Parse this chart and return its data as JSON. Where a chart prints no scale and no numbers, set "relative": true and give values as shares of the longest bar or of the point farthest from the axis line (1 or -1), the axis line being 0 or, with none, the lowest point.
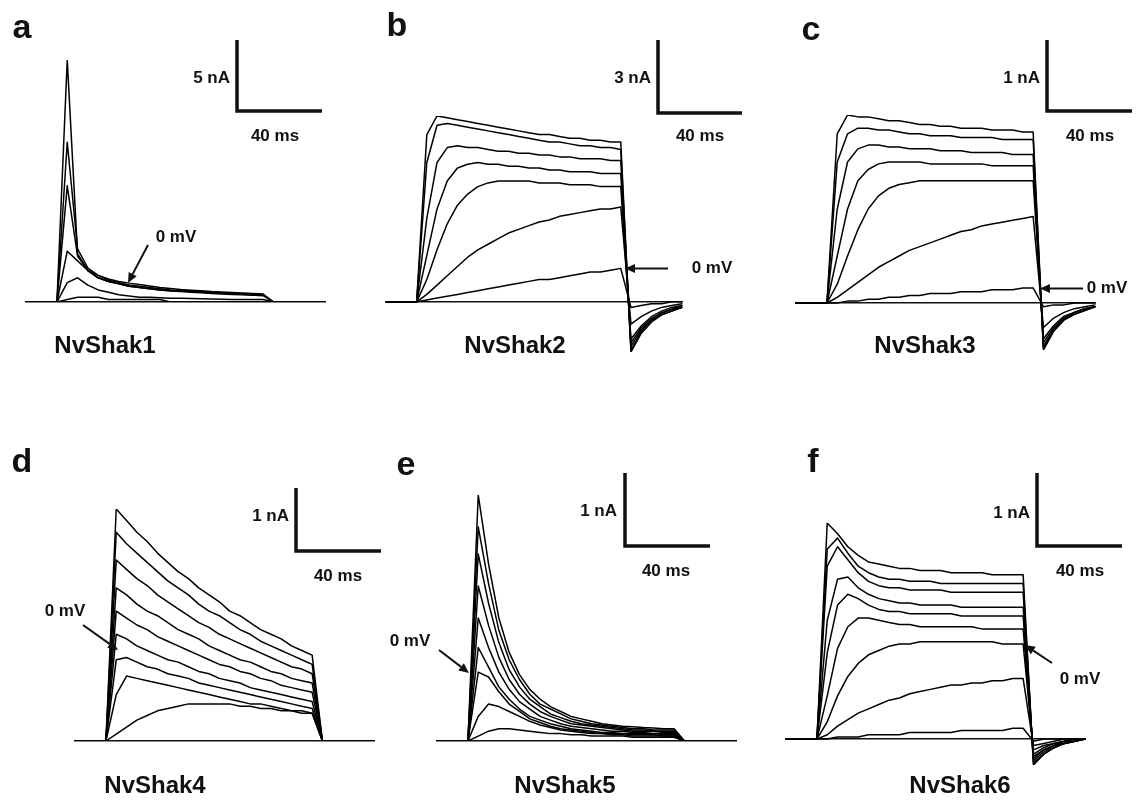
{
  "chart_data": [
    {
      "type": "line",
      "title": "a",
      "xlabel": "NvShak1",
      "relative": true,
      "annotations": [
        "5 nA",
        "40 ms",
        "0 mV"
      ],
      "categories": [
        null,
        null,
        null,
        null,
        null,
        null,
        null,
        null,
        null,
        null,
        null,
        null,
        null,
        null,
        null,
        null,
        null,
        null,
        null,
        null,
        null,
        null,
        null,
        null,
        null,
        null,
        null,
        null,
        null,
        null
      ],
      "series": [
        {
          "color": "#000000",
          "values": [
            0,
            0,
            0,
            0,
            1,
            0.2,
            0.13,
            0.1,
            0.085,
            0.075,
            0.065,
            0.06,
            0.055,
            0.05,
            0.048,
            0.045,
            0.043,
            0.04,
            0.038,
            0.036,
            0.034,
            0.032,
            0.03,
            0.03,
            0,
            0,
            0,
            0,
            0,
            0
          ]
        },
        {
          "color": "#000000",
          "values": [
            0,
            0,
            0,
            0,
            0.66,
            0.22,
            0.14,
            0.11,
            0.09,
            0.08,
            0.07,
            0.065,
            0.06,
            0.055,
            0.05,
            0.048,
            0.045,
            0.043,
            0.04,
            0.038,
            0.036,
            0.034,
            0.032,
            0.03,
            0,
            0,
            0,
            0,
            0,
            0
          ]
        },
        {
          "color": "#000000",
          "values": [
            0,
            0,
            0,
            0,
            0.48,
            0.19,
            0.13,
            0.1,
            0.085,
            0.075,
            0.065,
            0.06,
            0.055,
            0.05,
            0.045,
            0.043,
            0.04,
            0.038,
            0.035,
            0.033,
            0.031,
            0.03,
            0.028,
            0.026,
            0,
            0,
            0,
            0,
            0,
            0
          ]
        },
        {
          "color": "#000000",
          "values": [
            0,
            0,
            0,
            0,
            0.21,
            0.17,
            0.13,
            0.11,
            0.095,
            0.085,
            0.078,
            0.072,
            0.066,
            0.06,
            0.056,
            0.052,
            0.049,
            0.046,
            0.043,
            0.041,
            0.039,
            0.037,
            0.035,
            0.033,
            0,
            0,
            0,
            0,
            0,
            0
          ]
        },
        {
          "color": "#000000",
          "values": [
            0,
            0,
            0,
            0,
            0.08,
            0.1,
            0.07,
            0.05,
            0.04,
            0.03,
            0.025,
            0.02,
            0.02,
            0.018,
            0.016,
            0.015,
            0.014,
            0.013,
            0.012,
            0.011,
            0.01,
            0.01,
            0.01,
            0.01,
            0,
            0,
            0,
            0,
            0,
            0
          ]
        },
        {
          "color": "#000000",
          "values": [
            0,
            0,
            0,
            0,
            0.01,
            0.02,
            0.02,
            0.02,
            0.01,
            0.01,
            0.01,
            0.01,
            0.01,
            0.01,
            0,
            0,
            0,
            0,
            0,
            0,
            0,
            0,
            0,
            0,
            0,
            0,
            0,
            0,
            0,
            0
          ]
        }
      ]
    },
    {
      "type": "line",
      "title": "b",
      "xlabel": "NvShak2",
      "relative": true,
      "annotations": [
        "3 nA",
        "40 ms",
        "0 mV"
      ],
      "categories": [
        null,
        null,
        null,
        null,
        null,
        null,
        null,
        null,
        null,
        null,
        null,
        null,
        null,
        null,
        null,
        null,
        null,
        null,
        null,
        null,
        null,
        null,
        null,
        null,
        null,
        null,
        null,
        null,
        null,
        null
      ],
      "series": [
        {
          "color": "#000000",
          "values": [
            0,
            0,
            0,
            0,
            0.9,
            1,
            0.99,
            0.98,
            0.97,
            0.96,
            0.95,
            0.94,
            0.93,
            0.92,
            0.91,
            0.9,
            0.9,
            0.89,
            0.88,
            0.88,
            0.87,
            0.87,
            0.86,
            0.86,
            -0.27,
            -0.17,
            -0.11,
            -0.07,
            -0.05,
            -0.03
          ]
        },
        {
          "color": "#000000",
          "values": [
            0,
            0,
            0,
            0,
            0.75,
            0.95,
            0.96,
            0.95,
            0.94,
            0.93,
            0.92,
            0.91,
            0.9,
            0.89,
            0.88,
            0.87,
            0.86,
            0.86,
            0.85,
            0.84,
            0.84,
            0.83,
            0.83,
            0.82,
            -0.26,
            -0.16,
            -0.1,
            -0.07,
            -0.05,
            -0.03
          ]
        },
        {
          "color": "#000000",
          "values": [
            0,
            0,
            0,
            0,
            0.45,
            0.75,
            0.83,
            0.84,
            0.83,
            0.83,
            0.82,
            0.81,
            0.81,
            0.8,
            0.8,
            0.79,
            0.79,
            0.78,
            0.78,
            0.77,
            0.77,
            0.77,
            0.76,
            0.76,
            -0.24,
            -0.15,
            -0.1,
            -0.06,
            -0.04,
            -0.03
          ]
        },
        {
          "color": "#000000",
          "values": [
            0,
            0,
            0,
            0,
            0.25,
            0.5,
            0.65,
            0.72,
            0.74,
            0.75,
            0.74,
            0.74,
            0.73,
            0.73,
            0.72,
            0.72,
            0.71,
            0.71,
            0.7,
            0.7,
            0.7,
            0.69,
            0.69,
            0.69,
            -0.22,
            -0.14,
            -0.09,
            -0.06,
            -0.04,
            -0.02
          ]
        },
        {
          "color": "#000000",
          "values": [
            0,
            0,
            0,
            0,
            0.12,
            0.28,
            0.42,
            0.52,
            0.58,
            0.62,
            0.64,
            0.65,
            0.65,
            0.65,
            0.65,
            0.64,
            0.64,
            0.64,
            0.63,
            0.63,
            0.63,
            0.62,
            0.62,
            0.62,
            -0.2,
            -0.13,
            -0.08,
            -0.05,
            -0.03,
            -0.02
          ]
        },
        {
          "color": "#000000",
          "values": [
            0,
            0,
            0,
            0,
            0.04,
            0.09,
            0.14,
            0.19,
            0.24,
            0.28,
            0.31,
            0.34,
            0.37,
            0.39,
            0.41,
            0.43,
            0.44,
            0.46,
            0.47,
            0.48,
            0.49,
            0.5,
            0.5,
            0.51,
            -0.12,
            -0.08,
            -0.05,
            -0.03,
            -0.02,
            -0.01
          ]
        },
        {
          "color": "#000000",
          "values": [
            0,
            0,
            0,
            0,
            0.01,
            0.02,
            0.03,
            0.04,
            0.05,
            0.06,
            0.07,
            0.08,
            0.09,
            0.1,
            0.11,
            0.12,
            0.12,
            0.13,
            0.14,
            0.15,
            0.16,
            0.16,
            0.17,
            0.18,
            -0.03,
            -0.02,
            -0.01,
            -0.01,
            0,
            0
          ]
        }
      ]
    },
    {
      "type": "line",
      "title": "c",
      "xlabel": "NvShak3",
      "relative": true,
      "annotations": [
        "1 nA",
        "40 ms",
        "0 mV"
      ],
      "categories": [
        null,
        null,
        null,
        null,
        null,
        null,
        null,
        null,
        null,
        null,
        null,
        null,
        null,
        null,
        null,
        null,
        null,
        null,
        null,
        null,
        null,
        null,
        null,
        null,
        null,
        null,
        null,
        null,
        null,
        null
      ],
      "series": [
        {
          "color": "#000000",
          "values": [
            0,
            0,
            0,
            0,
            0.9,
            1,
            0.99,
            0.99,
            0.98,
            0.97,
            0.97,
            0.96,
            0.95,
            0.95,
            0.94,
            0.94,
            0.93,
            0.93,
            0.93,
            0.92,
            0.92,
            0.92,
            0.91,
            0.91,
            -0.25,
            -0.15,
            -0.09,
            -0.06,
            -0.04,
            -0.02
          ]
        },
        {
          "color": "#000000",
          "values": [
            0,
            0,
            0,
            0,
            0.75,
            0.9,
            0.93,
            0.93,
            0.92,
            0.92,
            0.91,
            0.9,
            0.9,
            0.89,
            0.89,
            0.89,
            0.88,
            0.88,
            0.88,
            0.88,
            0.87,
            0.87,
            0.87,
            0.87,
            -0.24,
            -0.14,
            -0.09,
            -0.06,
            -0.04,
            -0.02
          ]
        },
        {
          "color": "#000000",
          "values": [
            0,
            0,
            0,
            0,
            0.5,
            0.75,
            0.82,
            0.84,
            0.84,
            0.83,
            0.83,
            0.82,
            0.82,
            0.82,
            0.81,
            0.81,
            0.81,
            0.8,
            0.8,
            0.8,
            0.8,
            0.79,
            0.79,
            0.79,
            -0.23,
            -0.14,
            -0.08,
            -0.05,
            -0.03,
            -0.02
          ]
        },
        {
          "color": "#000000",
          "values": [
            0,
            0,
            0,
            0,
            0.25,
            0.5,
            0.65,
            0.71,
            0.74,
            0.75,
            0.75,
            0.75,
            0.75,
            0.74,
            0.74,
            0.74,
            0.74,
            0.74,
            0.74,
            0.73,
            0.73,
            0.73,
            0.73,
            0.73,
            -0.21,
            -0.13,
            -0.08,
            -0.05,
            -0.03,
            -0.02
          ]
        },
        {
          "color": "#000000",
          "values": [
            0,
            0,
            0,
            0,
            0.1,
            0.25,
            0.39,
            0.5,
            0.57,
            0.61,
            0.63,
            0.64,
            0.65,
            0.65,
            0.65,
            0.65,
            0.65,
            0.65,
            0.65,
            0.65,
            0.65,
            0.65,
            0.65,
            0.65,
            -0.19,
            -0.12,
            -0.07,
            -0.05,
            -0.03,
            -0.02
          ]
        },
        {
          "color": "#000000",
          "values": [
            0,
            0,
            0,
            0,
            0.03,
            0.07,
            0.11,
            0.15,
            0.19,
            0.22,
            0.25,
            0.28,
            0.3,
            0.32,
            0.34,
            0.36,
            0.38,
            0.39,
            0.41,
            0.42,
            0.43,
            0.44,
            0.45,
            0.46,
            -0.13,
            -0.08,
            -0.05,
            -0.03,
            -0.02,
            -0.01
          ]
        },
        {
          "color": "#000000",
          "values": [
            0,
            0,
            0,
            0,
            0,
            0.01,
            0.01,
            0.02,
            0.02,
            0.03,
            0.03,
            0.04,
            0.04,
            0.05,
            0.05,
            0.05,
            0.06,
            0.06,
            0.06,
            0.07,
            0.07,
            0.07,
            0.08,
            0.08,
            -0.02,
            -0.01,
            -0.01,
            0,
            0,
            0
          ]
        }
      ]
    },
    {
      "type": "line",
      "title": "d",
      "xlabel": "NvShak4",
      "relative": true,
      "annotations": [
        "1 nA",
        "40 ms",
        "0 mV"
      ],
      "categories": [
        null,
        null,
        null,
        null,
        null,
        null,
        null,
        null,
        null,
        null,
        null,
        null,
        null,
        null,
        null,
        null,
        null,
        null,
        null,
        null,
        null,
        null,
        null,
        null,
        null,
        null,
        null,
        null,
        null,
        null
      ],
      "series": [
        {
          "color": "#000000",
          "values": [
            0,
            0,
            0,
            0,
            1,
            0.95,
            0.9,
            0.86,
            0.81,
            0.77,
            0.73,
            0.7,
            0.66,
            0.63,
            0.6,
            0.56,
            0.54,
            0.51,
            0.48,
            0.46,
            0.44,
            0.41,
            0.39,
            0.37,
            0,
            0,
            0,
            0,
            0,
            0
          ]
        },
        {
          "color": "#000000",
          "values": [
            0,
            0,
            0,
            0,
            0.9,
            0.85,
            0.81,
            0.77,
            0.73,
            0.69,
            0.66,
            0.63,
            0.59,
            0.56,
            0.54,
            0.51,
            0.48,
            0.46,
            0.43,
            0.41,
            0.39,
            0.37,
            0.35,
            0.33,
            0,
            0,
            0,
            0,
            0,
            0
          ]
        },
        {
          "color": "#000000",
          "values": [
            0,
            0,
            0,
            0,
            0.78,
            0.74,
            0.7,
            0.67,
            0.63,
            0.6,
            0.57,
            0.54,
            0.51,
            0.49,
            0.46,
            0.44,
            0.42,
            0.4,
            0.38,
            0.36,
            0.34,
            0.32,
            0.31,
            0.29,
            0,
            0,
            0,
            0,
            0,
            0
          ]
        },
        {
          "color": "#000000",
          "values": [
            0,
            0,
            0,
            0,
            0.66,
            0.63,
            0.59,
            0.56,
            0.54,
            0.51,
            0.48,
            0.46,
            0.44,
            0.41,
            0.39,
            0.37,
            0.35,
            0.34,
            0.32,
            0.3,
            0.29,
            0.27,
            0.26,
            0.25,
            0,
            0,
            0,
            0,
            0,
            0
          ]
        },
        {
          "color": "#000000",
          "values": [
            0,
            0,
            0,
            0,
            0.56,
            0.53,
            0.5,
            0.48,
            0.45,
            0.43,
            0.41,
            0.39,
            0.37,
            0.35,
            0.33,
            0.32,
            0.3,
            0.29,
            0.27,
            0.26,
            0.24,
            0.23,
            0.22,
            0.21,
            0,
            0,
            0,
            0,
            0,
            0
          ]
        },
        {
          "color": "#000000",
          "values": [
            0,
            0,
            0,
            0,
            0.46,
            0.44,
            0.41,
            0.39,
            0.37,
            0.35,
            0.34,
            0.32,
            0.3,
            0.29,
            0.27,
            0.26,
            0.25,
            0.23,
            0.22,
            0.21,
            0.2,
            0.19,
            0.18,
            0.17,
            0,
            0,
            0,
            0,
            0,
            0
          ]
        },
        {
          "color": "#000000",
          "values": [
            0,
            0,
            0,
            0,
            0.35,
            0.36,
            0.34,
            0.32,
            0.31,
            0.29,
            0.28,
            0.27,
            0.25,
            0.24,
            0.23,
            0.22,
            0.21,
            0.2,
            0.19,
            0.18,
            0.17,
            0.16,
            0.15,
            0.14,
            0,
            0,
            0,
            0,
            0,
            0
          ]
        },
        {
          "color": "#000000",
          "values": [
            0,
            0,
            0,
            0,
            0.2,
            0.28,
            0.27,
            0.26,
            0.25,
            0.24,
            0.23,
            0.22,
            0.21,
            0.2,
            0.19,
            0.18,
            0.17,
            0.16,
            0.16,
            0.15,
            0.14,
            0.13,
            0.13,
            0.12,
            0,
            0,
            0,
            0,
            0,
            0
          ]
        },
        {
          "color": "#000000",
          "values": [
            0,
            0,
            0,
            0,
            0.03,
            0.06,
            0.09,
            0.11,
            0.13,
            0.14,
            0.15,
            0.16,
            0.16,
            0.16,
            0.16,
            0.16,
            0.15,
            0.15,
            0.14,
            0.14,
            0.13,
            0.13,
            0.12,
            0.12,
            0,
            0,
            0,
            0,
            0,
            0
          ]
        }
      ]
    },
    {
      "type": "line",
      "title": "e",
      "xlabel": "NvShak5",
      "relative": true,
      "annotations": [
        "1 nA",
        "40 ms",
        "0 mV"
      ],
      "categories": [
        null,
        null,
        null,
        null,
        null,
        null,
        null,
        null,
        null,
        null,
        null,
        null,
        null,
        null,
        null,
        null,
        null,
        null,
        null,
        null,
        null,
        null,
        null,
        null,
        null,
        null,
        null,
        null,
        null,
        null
      ],
      "series": [
        {
          "color": "#000000",
          "values": [
            0,
            0,
            0,
            0,
            1,
            0.72,
            0.5,
            0.36,
            0.27,
            0.21,
            0.17,
            0.14,
            0.12,
            0.1,
            0.09,
            0.08,
            0.07,
            0.065,
            0.06,
            0.058,
            0.055,
            0.053,
            0.05,
            0.05,
            0,
            0,
            0,
            0,
            0,
            0
          ]
        },
        {
          "color": "#000000",
          "values": [
            0,
            0,
            0,
            0,
            0.87,
            0.64,
            0.45,
            0.33,
            0.25,
            0.19,
            0.15,
            0.13,
            0.11,
            0.09,
            0.08,
            0.07,
            0.065,
            0.06,
            0.055,
            0.05,
            0.05,
            0.045,
            0.045,
            0.045,
            0,
            0,
            0,
            0,
            0,
            0
          ]
        },
        {
          "color": "#000000",
          "values": [
            0,
            0,
            0,
            0,
            0.76,
            0.56,
            0.4,
            0.29,
            0.22,
            0.17,
            0.14,
            0.11,
            0.095,
            0.08,
            0.07,
            0.065,
            0.06,
            0.055,
            0.05,
            0.045,
            0.045,
            0.04,
            0.04,
            0.04,
            0,
            0,
            0,
            0,
            0,
            0
          ]
        },
        {
          "color": "#000000",
          "values": [
            0,
            0,
            0,
            0,
            0.63,
            0.47,
            0.34,
            0.25,
            0.19,
            0.15,
            0.12,
            0.1,
            0.085,
            0.07,
            0.065,
            0.06,
            0.055,
            0.05,
            0.045,
            0.04,
            0.04,
            0.04,
            0.035,
            0.035,
            0,
            0,
            0,
            0,
            0,
            0
          ]
        },
        {
          "color": "#000000",
          "values": [
            0,
            0,
            0,
            0,
            0.5,
            0.38,
            0.28,
            0.21,
            0.16,
            0.13,
            0.1,
            0.085,
            0.07,
            0.06,
            0.055,
            0.05,
            0.045,
            0.04,
            0.04,
            0.035,
            0.035,
            0.03,
            0.03,
            0.03,
            0,
            0,
            0,
            0,
            0,
            0
          ]
        },
        {
          "color": "#000000",
          "values": [
            0,
            0,
            0,
            0,
            0.38,
            0.3,
            0.22,
            0.17,
            0.13,
            0.1,
            0.085,
            0.07,
            0.06,
            0.05,
            0.045,
            0.04,
            0.035,
            0.035,
            0.03,
            0.03,
            0.03,
            0.03,
            0.025,
            0.025,
            0,
            0,
            0,
            0,
            0,
            0
          ]
        },
        {
          "color": "#000000",
          "values": [
            0,
            0,
            0,
            0,
            0.28,
            0.26,
            0.2,
            0.15,
            0.12,
            0.09,
            0.075,
            0.06,
            0.05,
            0.045,
            0.04,
            0.035,
            0.03,
            0.03,
            0.03,
            0.025,
            0.025,
            0.025,
            0.02,
            0.02,
            0,
            0,
            0,
            0,
            0,
            0
          ]
        },
        {
          "color": "#000000",
          "values": [
            0,
            0,
            0,
            0,
            0.1,
            0.15,
            0.14,
            0.12,
            0.1,
            0.08,
            0.065,
            0.055,
            0.045,
            0.04,
            0.035,
            0.03,
            0.03,
            0.025,
            0.025,
            0.02,
            0.02,
            0.02,
            0.02,
            0.02,
            0,
            0,
            0,
            0,
            0,
            0
          ]
        },
        {
          "color": "#000000",
          "values": [
            0,
            0,
            0,
            0,
            0.02,
            0.04,
            0.05,
            0.05,
            0.045,
            0.04,
            0.035,
            0.03,
            0.03,
            0.025,
            0.025,
            0.02,
            0.02,
            0.02,
            0.02,
            0.015,
            0.015,
            0.015,
            0.015,
            0.015,
            0,
            0,
            0,
            0,
            0,
            0
          ]
        }
      ]
    },
    {
      "type": "line",
      "title": "f",
      "xlabel": "NvShak6",
      "relative": true,
      "annotations": [
        "1 nA",
        "40 ms",
        "0 mV"
      ],
      "categories": [
        null,
        null,
        null,
        null,
        null,
        null,
        null,
        null,
        null,
        null,
        null,
        null,
        null,
        null,
        null,
        null,
        null,
        null,
        null,
        null,
        null,
        null,
        null,
        null,
        null,
        null,
        null,
        null,
        null,
        null
      ],
      "series": [
        {
          "color": "#000000",
          "values": [
            0,
            0,
            0,
            0,
            1,
            0.95,
            0.89,
            0.85,
            0.82,
            0.81,
            0.8,
            0.79,
            0.79,
            0.78,
            0.78,
            0.78,
            0.77,
            0.77,
            0.77,
            0.77,
            0.76,
            0.76,
            0.76,
            0.76,
            -0.12,
            -0.07,
            -0.04,
            -0.02,
            -0.01,
            0
          ]
        },
        {
          "color": "#000000",
          "values": [
            0,
            0,
            0,
            0,
            0.88,
            0.93,
            0.86,
            0.8,
            0.77,
            0.75,
            0.74,
            0.74,
            0.73,
            0.73,
            0.73,
            0.72,
            0.72,
            0.72,
            0.72,
            0.72,
            0.72,
            0.72,
            0.72,
            0.72,
            -0.11,
            -0.07,
            -0.04,
            -0.02,
            -0.01,
            0
          ]
        },
        {
          "color": "#000000",
          "values": [
            0,
            0,
            0,
            0,
            0.8,
            0.89,
            0.83,
            0.77,
            0.73,
            0.71,
            0.7,
            0.7,
            0.69,
            0.69,
            0.69,
            0.69,
            0.68,
            0.68,
            0.68,
            0.68,
            0.68,
            0.68,
            0.68,
            0.68,
            -0.1,
            -0.06,
            -0.03,
            -0.02,
            -0.01,
            0
          ]
        },
        {
          "color": "#000000",
          "values": [
            0,
            0,
            0,
            0,
            0.55,
            0.74,
            0.75,
            0.7,
            0.67,
            0.65,
            0.64,
            0.63,
            0.63,
            0.62,
            0.62,
            0.62,
            0.62,
            0.61,
            0.61,
            0.61,
            0.61,
            0.61,
            0.61,
            0.61,
            -0.09,
            -0.05,
            -0.03,
            -0.02,
            -0.01,
            0
          ]
        },
        {
          "color": "#000000",
          "values": [
            0,
            0,
            0,
            0,
            0.4,
            0.62,
            0.67,
            0.65,
            0.62,
            0.6,
            0.59,
            0.59,
            0.58,
            0.58,
            0.58,
            0.58,
            0.58,
            0.57,
            0.57,
            0.57,
            0.57,
            0.57,
            0.57,
            0.57,
            -0.08,
            -0.05,
            -0.03,
            -0.01,
            -0.01,
            0
          ]
        },
        {
          "color": "#000000",
          "values": [
            0,
            0,
            0,
            0,
            0.2,
            0.42,
            0.52,
            0.56,
            0.56,
            0.55,
            0.54,
            0.53,
            0.53,
            0.52,
            0.52,
            0.52,
            0.52,
            0.52,
            0.52,
            0.51,
            0.51,
            0.51,
            0.51,
            0.51,
            -0.07,
            -0.04,
            -0.02,
            -0.01,
            0,
            0
          ]
        },
        {
          "color": "#000000",
          "values": [
            0,
            0,
            0,
            0,
            0.08,
            0.2,
            0.29,
            0.35,
            0.39,
            0.41,
            0.43,
            0.44,
            0.44,
            0.45,
            0.45,
            0.45,
            0.45,
            0.45,
            0.45,
            0.45,
            0.45,
            0.44,
            0.44,
            0.44,
            -0.05,
            -0.03,
            -0.02,
            -0.01,
            0,
            0
          ]
        },
        {
          "color": "#000000",
          "values": [
            0,
            0,
            0,
            0,
            0.02,
            0.06,
            0.09,
            0.12,
            0.14,
            0.16,
            0.18,
            0.19,
            0.21,
            0.22,
            0.23,
            0.24,
            0.25,
            0.25,
            0.26,
            0.26,
            0.27,
            0.27,
            0.28,
            0.28,
            -0.03,
            -0.02,
            -0.01,
            0,
            0,
            0
          ]
        },
        {
          "color": "#000000",
          "values": [
            0,
            0,
            0,
            0,
            0,
            0.01,
            0.01,
            0.01,
            0.02,
            0.02,
            0.02,
            0.02,
            0.03,
            0.03,
            0.03,
            0.03,
            0.03,
            0.04,
            0.04,
            0.04,
            0.04,
            0.04,
            0.05,
            0.05,
            -0.01,
            0,
            0,
            0,
            0,
            0
          ]
        }
      ]
    }
  ]
}
